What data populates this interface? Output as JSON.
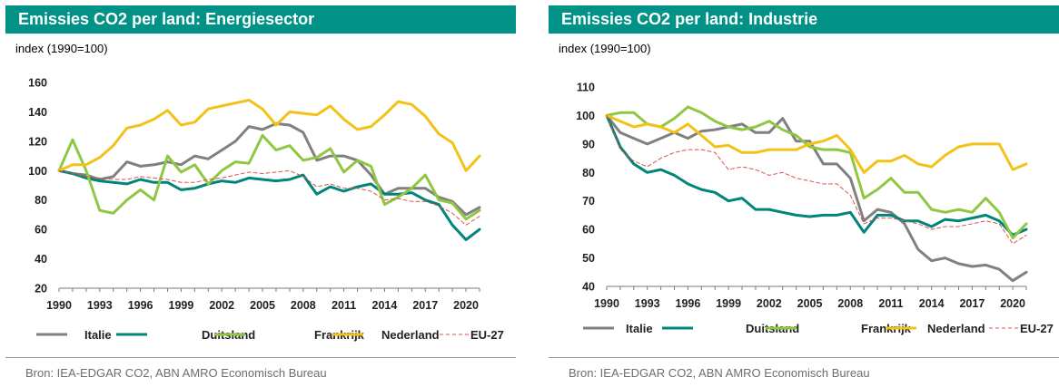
{
  "chart_data": [
    {
      "type": "line",
      "title": "Emissies CO2 per land: Energiesector",
      "ylabel": "index (1990=100)",
      "source": "Bron: IEA-EDGAR CO2, ABN AMRO Economisch Bureau",
      "xlim": [
        1990,
        2021
      ],
      "ylim": [
        20,
        160
      ],
      "xticks": [
        1990,
        1993,
        1996,
        1999,
        2002,
        2005,
        2008,
        2011,
        2014,
        2017,
        2020
      ],
      "yticks": [
        20,
        40,
        60,
        80,
        100,
        120,
        140,
        160
      ],
      "legend_position": "bottom",
      "grid": false,
      "x": [
        1990,
        1991,
        1992,
        1993,
        1994,
        1995,
        1996,
        1997,
        1998,
        1999,
        2000,
        2001,
        2002,
        2003,
        2004,
        2005,
        2006,
        2007,
        2008,
        2009,
        2010,
        2011,
        2012,
        2013,
        2014,
        2015,
        2016,
        2017,
        2018,
        2019,
        2020,
        2021
      ],
      "series": [
        {
          "name": "Italie",
          "color": "#808080",
          "dash": false,
          "values": [
            100,
            98,
            97,
            94,
            96,
            106,
            103,
            104,
            106,
            104,
            110,
            108,
            114,
            120,
            130,
            128,
            132,
            131,
            126,
            107,
            110,
            110,
            107,
            97,
            84,
            88,
            88,
            88,
            82,
            79,
            70,
            75
          ]
        },
        {
          "name": "Duitsland",
          "color": "#00857a",
          "dash": false,
          "values": [
            100,
            98,
            95,
            93,
            92,
            91,
            94,
            92,
            92,
            87,
            88,
            91,
            93,
            92,
            95,
            94,
            93,
            94,
            97,
            84,
            89,
            86,
            89,
            91,
            84,
            84,
            85,
            80,
            77,
            63,
            53,
            60
          ]
        },
        {
          "name": "Frankrijk",
          "color": "#8fc742",
          "dash": false,
          "values": [
            100,
            121,
            100,
            73,
            71,
            80,
            87,
            80,
            110,
            99,
            104,
            91,
            100,
            106,
            105,
            124,
            114,
            117,
            107,
            109,
            115,
            99,
            107,
            103,
            77,
            82,
            88,
            97,
            80,
            78,
            67,
            73
          ]
        },
        {
          "name": "Nederland",
          "color": "#f2c218",
          "dash": false,
          "values": [
            100,
            104,
            104,
            109,
            117,
            129,
            131,
            135,
            141,
            131,
            133,
            142,
            144,
            146,
            148,
            142,
            131,
            140,
            139,
            138,
            144,
            135,
            128,
            130,
            138,
            147,
            145,
            137,
            125,
            119,
            100,
            110
          ]
        },
        {
          "name": "EU-27",
          "color": "#d9534f",
          "dash": true,
          "values": [
            100,
            98,
            96,
            95,
            94,
            94,
            96,
            95,
            94,
            92,
            92,
            94,
            95,
            97,
            99,
            98,
            99,
            100,
            96,
            89,
            91,
            88,
            88,
            86,
            80,
            81,
            79,
            79,
            76,
            71,
            63,
            69
          ]
        }
      ]
    },
    {
      "type": "line",
      "title": "Emissies CO2 per land: Industrie",
      "ylabel": "index (1990=100)",
      "source": "Bron: IEA-EDGAR CO2, ABN AMRO Economisch Bureau",
      "xlim": [
        1990,
        2021
      ],
      "ylim": [
        40,
        110
      ],
      "xticks": [
        1990,
        1993,
        1996,
        1999,
        2002,
        2005,
        2008,
        2011,
        2014,
        2017,
        2020
      ],
      "yticks": [
        40,
        50,
        60,
        70,
        80,
        90,
        100,
        110
      ],
      "legend_position": "bottom",
      "grid": false,
      "x": [
        1990,
        1991,
        1992,
        1993,
        1994,
        1995,
        1996,
        1997,
        1998,
        1999,
        2000,
        2001,
        2002,
        2003,
        2004,
        2005,
        2006,
        2007,
        2008,
        2009,
        2010,
        2011,
        2012,
        2013,
        2014,
        2015,
        2016,
        2017,
        2018,
        2019,
        2020,
        2021
      ],
      "series": [
        {
          "name": "Italie",
          "color": "#808080",
          "dash": false,
          "values": [
            100,
            94,
            92,
            90,
            92,
            94,
            92,
            94.5,
            95,
            96,
            97,
            94,
            94,
            99,
            91,
            91,
            83,
            83,
            78,
            63,
            67,
            66,
            62,
            53,
            49,
            50,
            48,
            47,
            47.5,
            46,
            42,
            45
          ]
        },
        {
          "name": "Duitsland",
          "color": "#00857a",
          "dash": false,
          "values": [
            100,
            89,
            83,
            80,
            81,
            79,
            76,
            74,
            73,
            70,
            71,
            67,
            67,
            66,
            65,
            64.5,
            65,
            65,
            66,
            59,
            65,
            65,
            63,
            63,
            61,
            63.5,
            63,
            64,
            65,
            63,
            58,
            60
          ]
        },
        {
          "name": "Frankrijk",
          "color": "#8fc742",
          "dash": false,
          "values": [
            100,
            101,
            101,
            97,
            96,
            99,
            103,
            101,
            98,
            96,
            95,
            96,
            98,
            95,
            93,
            89,
            88,
            88,
            87,
            71,
            74,
            78,
            73,
            73,
            67,
            66,
            67,
            66,
            71,
            66,
            57,
            62
          ]
        },
        {
          "name": "Nederland",
          "color": "#f2c218",
          "dash": false,
          "values": [
            100,
            98,
            96,
            97,
            96,
            94,
            97,
            93,
            89,
            89.5,
            87,
            87,
            88,
            88,
            88,
            90,
            91,
            93,
            88,
            80,
            84,
            84,
            86,
            83,
            82,
            86,
            89,
            90,
            90,
            90,
            81,
            83
          ]
        },
        {
          "name": "EU-27",
          "color": "#d9534f",
          "dash": true,
          "values": [
            100,
            88,
            84,
            82,
            85,
            87,
            88,
            88,
            87,
            81,
            82,
            81,
            79,
            80,
            78,
            77,
            76,
            76,
            72,
            62,
            64,
            64,
            63,
            62,
            60,
            61,
            61,
            62,
            63,
            62,
            55,
            58
          ]
        }
      ]
    }
  ]
}
